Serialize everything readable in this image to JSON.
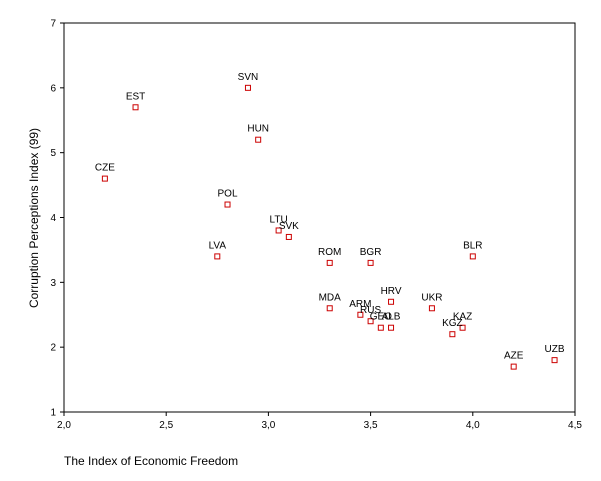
{
  "chart_data": {
    "type": "scatter",
    "title": "",
    "xlabel": "The Index of Economic Freedom",
    "ylabel": "Corruption Perceptions Index (99)",
    "xlim": [
      2.0,
      4.5
    ],
    "ylim": [
      1,
      7
    ],
    "xticks": [
      2.0,
      2.5,
      3.0,
      3.5,
      4.0,
      4.5
    ],
    "xtick_labels": [
      "2,0",
      "2,5",
      "3,0",
      "3,5",
      "4,0",
      "4,5"
    ],
    "yticks": [
      1,
      2,
      3,
      4,
      5,
      6,
      7
    ],
    "ytick_labels": [
      "1",
      "2",
      "3",
      "4",
      "5",
      "6",
      "7"
    ],
    "grid": false,
    "marker_color": "#cc0000",
    "points": [
      {
        "label": "SVN",
        "x": 2.9,
        "y": 6.0
      },
      {
        "label": "EST",
        "x": 2.35,
        "y": 5.7
      },
      {
        "label": "HUN",
        "x": 2.95,
        "y": 5.2
      },
      {
        "label": "CZE",
        "x": 2.2,
        "y": 4.6
      },
      {
        "label": "POL",
        "x": 2.8,
        "y": 4.2
      },
      {
        "label": "LTU",
        "x": 3.05,
        "y": 3.8
      },
      {
        "label": "SVK",
        "x": 3.1,
        "y": 3.7
      },
      {
        "label": "LVA",
        "x": 2.75,
        "y": 3.4
      },
      {
        "label": "ROM",
        "x": 3.3,
        "y": 3.3
      },
      {
        "label": "BGR",
        "x": 3.5,
        "y": 3.3
      },
      {
        "label": "BLR",
        "x": 4.0,
        "y": 3.4
      },
      {
        "label": "HRV",
        "x": 3.6,
        "y": 2.7
      },
      {
        "label": "UKR",
        "x": 3.8,
        "y": 2.6
      },
      {
        "label": "MDA",
        "x": 3.3,
        "y": 2.6
      },
      {
        "label": "ARM",
        "x": 3.45,
        "y": 2.5
      },
      {
        "label": "RUS",
        "x": 3.5,
        "y": 2.4
      },
      {
        "label": "GEO",
        "x": 3.55,
        "y": 2.3
      },
      {
        "label": "ALB",
        "x": 3.6,
        "y": 2.3
      },
      {
        "label": "KAZ",
        "x": 3.95,
        "y": 2.3
      },
      {
        "label": "KGZ",
        "x": 3.9,
        "y": 2.2
      },
      {
        "label": "AZE",
        "x": 4.2,
        "y": 1.7
      },
      {
        "label": "UZB",
        "x": 4.4,
        "y": 1.8
      }
    ]
  }
}
